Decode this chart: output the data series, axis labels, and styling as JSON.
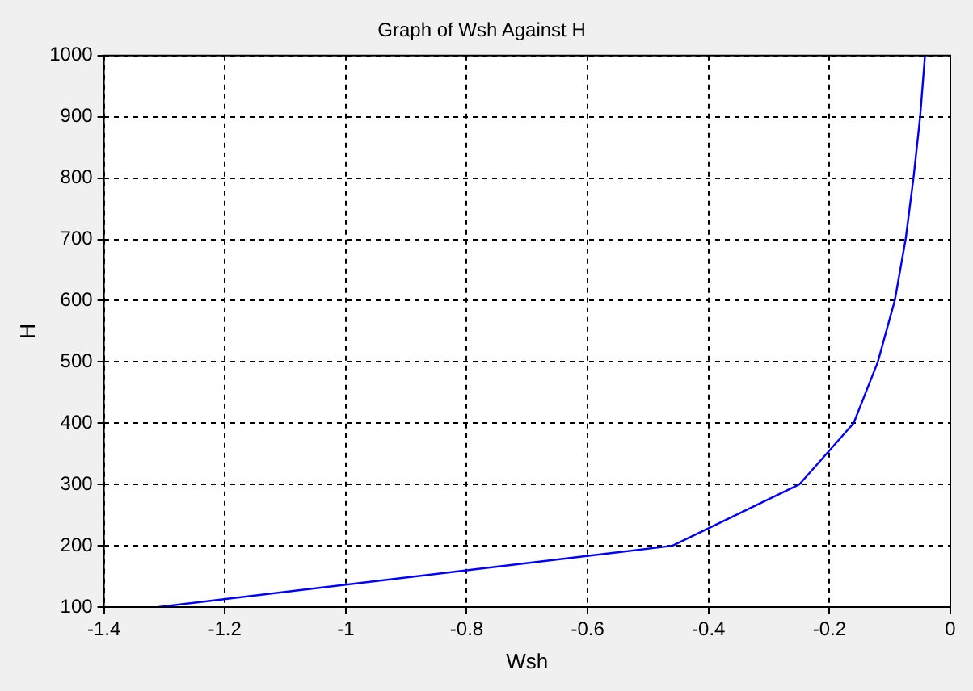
{
  "chart_data": {
    "type": "line",
    "title": "Graph of Wsh Against H",
    "xlabel": "Wsh",
    "ylabel": "H",
    "series": [
      {
        "color": "#0000ff",
        "x": [
          -1.31,
          -0.46,
          -0.25,
          -0.16,
          -0.12,
          -0.092,
          -0.074,
          -0.061,
          -0.05,
          -0.042
        ],
        "values": [
          100,
          200,
          300,
          400,
          500,
          600,
          700,
          800,
          900,
          1000
        ]
      }
    ],
    "xlim": [
      -1.4,
      0
    ],
    "xticks": [
      -1.4,
      -1.2,
      -1,
      -0.8,
      -0.6,
      -0.4,
      -0.2,
      0
    ],
    "ylim": [
      100,
      1000
    ],
    "yticks": [
      100,
      200,
      300,
      400,
      500,
      600,
      700,
      800,
      900,
      1000
    ],
    "grid": true,
    "line_style": "solid",
    "marker": "none",
    "legend": false
  }
}
